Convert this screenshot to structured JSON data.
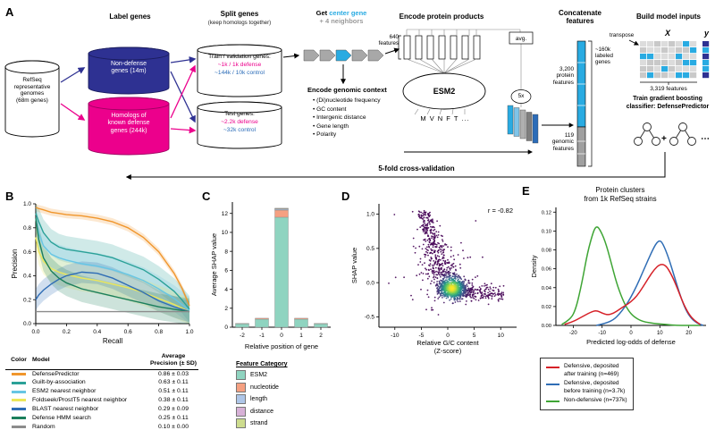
{
  "colors": {
    "navy": "#2e3192",
    "magenta": "#ec008c",
    "gene_blue": "#29abe2",
    "control_blue": "#2b6cb8",
    "neighbor_gray": "#9a9a9a",
    "gene_gray": "#a8a8a8"
  },
  "panels": {
    "a": "A",
    "b": "B",
    "c": "C",
    "d": "D",
    "e": "E"
  },
  "panelA": {
    "label_genes": "Label genes",
    "split_genes": "Split genes",
    "split_sub": "(keep homologs together)",
    "get": "Get ",
    "center_gene": "center gene",
    "neighbors": "+ 4 neighbors",
    "encode_protein": "Encode protein products",
    "concatenate": "Concatenate\nfeatures",
    "build": "Build model inputs",
    "refseq": "RefSeq\nrepresentative\ngenomes\n(68m genes)",
    "nondefense": "Non-defense\ngenes (14m)",
    "homologs": "Homologs of\nknown defense\ngenes (244k)",
    "train_title": "Train / validation genes:",
    "train_defense": "~1k / 1k defense",
    "train_control": "~144k / 10k control",
    "test_title": "Test genes:",
    "test_defense": "~2.2k defense",
    "test_control": "~32k control",
    "features640": "640\nfeatures",
    "avg": "avg.",
    "esm2": "ESM2",
    "aa": "M  V  N  F  T ...",
    "x5": "5x",
    "encode_context": "Encode genomic context",
    "context_items": [
      "(Di)nucleotide frequency",
      "GC content",
      "Intergenic distance",
      "Gene length",
      "Polarity"
    ],
    "protein_features": "3,200\nprotein\nfeatures",
    "genomic_features": "119\ngenomic\nfeatures",
    "labeled": "~160k\nlabeled\ngenes",
    "transpose": "transpose",
    "matrix_x": "X",
    "matrix_y": "y",
    "features3319": "3,319 features",
    "classifier": "Train gradient boosting\nclassifier: DefensePredictor",
    "plus": "+",
    "dots": "⋯",
    "cv": "5-fold cross-validation"
  },
  "chart_data": [
    {
      "id": "pr",
      "panel": "B",
      "type": "line",
      "xlabel": "Recall",
      "ylabel": "Precision",
      "xlim": [
        0,
        1
      ],
      "ylim": [
        0,
        1
      ],
      "xticks": [
        0.0,
        0.2,
        0.4,
        0.6,
        0.8,
        1.0
      ],
      "yticks": [
        0.0,
        0.2,
        0.4,
        0.6,
        0.8,
        1.0
      ],
      "x": [
        0,
        0.02,
        0.05,
        0.1,
        0.15,
        0.2,
        0.3,
        0.4,
        0.5,
        0.6,
        0.7,
        0.8,
        0.9,
        0.95,
        1.0
      ],
      "series": [
        {
          "name": "DefensePredictor",
          "color": "#f0962c",
          "sd": 0.03,
          "y": [
            0.97,
            0.96,
            0.95,
            0.93,
            0.92,
            0.91,
            0.9,
            0.88,
            0.85,
            0.8,
            0.72,
            0.6,
            0.42,
            0.3,
            0.15
          ]
        },
        {
          "name": "Guilt-by-association",
          "color": "#2ba198",
          "sd": 0.11,
          "y": [
            0.92,
            0.85,
            0.76,
            0.68,
            0.64,
            0.62,
            0.6,
            0.58,
            0.55,
            0.5,
            0.45,
            0.37,
            0.27,
            0.2,
            0.12
          ]
        },
        {
          "name": "ESM2 nearest neighbor",
          "color": "#67c6e4",
          "sd": 0.11,
          "y": [
            0.88,
            0.75,
            0.65,
            0.58,
            0.55,
            0.53,
            0.5,
            0.48,
            0.45,
            0.41,
            0.36,
            0.29,
            0.21,
            0.16,
            0.11
          ]
        },
        {
          "name": "Foldseek/ProstT5 nearest neighbor",
          "color": "#ece75a",
          "sd": 0.11,
          "y": [
            0.72,
            0.6,
            0.52,
            0.46,
            0.43,
            0.41,
            0.38,
            0.36,
            0.33,
            0.3,
            0.26,
            0.21,
            0.16,
            0.13,
            0.1
          ]
        },
        {
          "name": "BLAST nearest neighbor",
          "color": "#2f6db5",
          "sd": 0.09,
          "y": [
            0.2,
            0.24,
            0.28,
            0.33,
            0.37,
            0.4,
            0.43,
            0.42,
            0.38,
            0.32,
            0.26,
            0.19,
            0.14,
            0.12,
            0.1
          ]
        },
        {
          "name": "Defense HMM search",
          "color": "#1b7f5c",
          "sd": 0.11,
          "y": [
            0.88,
            0.7,
            0.55,
            0.44,
            0.38,
            0.34,
            0.29,
            0.26,
            0.23,
            0.2,
            0.17,
            0.14,
            0.12,
            0.11,
            0.1
          ]
        },
        {
          "name": "Random",
          "color": "#8c8c8c",
          "sd": 0.004,
          "y": [
            0.1,
            0.1,
            0.1,
            0.1,
            0.1,
            0.1,
            0.1,
            0.1,
            0.1,
            0.1,
            0.1,
            0.1,
            0.1,
            0.1,
            0.1
          ]
        }
      ],
      "table": {
        "col1": "Color",
        "col2": "Model",
        "col3": "Average\nPrecision (± SD)",
        "rows": [
          {
            "color": "#f0962c",
            "model": "DefensePredictor",
            "ap": "0.86 ± 0.03"
          },
          {
            "color": "#2ba198",
            "model": "Guilt-by-association",
            "ap": "0.63 ± 0.11"
          },
          {
            "color": "#67c6e4",
            "model": "ESM2 nearest neighbor",
            "ap": "0.51 ± 0.11"
          },
          {
            "color": "#ece75a",
            "model": "Foldseek/ProstT5 nearest neighbor",
            "ap": "0.38 ± 0.11"
          },
          {
            "color": "#2f6db5",
            "model": "BLAST nearest neighbor",
            "ap": "0.29 ± 0.09"
          },
          {
            "color": "#1b7f5c",
            "model": "Defense HMM search",
            "ap": "0.25 ± 0.11"
          },
          {
            "color": "#8c8c8c",
            "model": "Random",
            "ap": "0.10 ± 0.00"
          }
        ]
      }
    },
    {
      "id": "shap_bar",
      "panel": "C",
      "type": "bar",
      "xlabel": "Relative position of gene",
      "ylabel": "Average SHAP value",
      "categories": [
        -2,
        -1,
        0,
        1,
        2
      ],
      "yticks": [
        0,
        2,
        4,
        6,
        8,
        10,
        12
      ],
      "ylim": [
        0,
        13.2
      ],
      "stacks": [
        {
          "name": "ESM2",
          "color": "#8fd4c0",
          "values": [
            0.35,
            0.85,
            11.6,
            0.85,
            0.35
          ]
        },
        {
          "name": "nucleotide",
          "color": "#f5a081",
          "values": [
            0.05,
            0.1,
            0.75,
            0.1,
            0.05
          ]
        },
        {
          "name": "length",
          "color": "#aec6e8",
          "values": [
            0,
            0,
            0.1,
            0,
            0
          ]
        },
        {
          "name": "distance",
          "color": "#d7b1d7",
          "values": [
            0,
            0,
            0.05,
            0,
            0
          ]
        },
        {
          "name": "strand",
          "color": "#cddc8e",
          "values": [
            0,
            0,
            0.05,
            0,
            0
          ]
        }
      ],
      "legend_title": "Feature Category"
    },
    {
      "id": "gc_scatter",
      "panel": "D",
      "type": "scatter",
      "xlabel": "Relative G/C content\n(Z-score)",
      "ylabel": "SHAP value",
      "annotation": "r = -0.82",
      "xlim": [
        -13,
        13
      ],
      "ylim": [
        -0.65,
        1.15
      ],
      "xticks": [
        -10,
        -5,
        0,
        5,
        10
      ],
      "yticks": [
        -0.5,
        0.0,
        0.5,
        1.0
      ],
      "n_points": 1430,
      "distribution": "viridis density scatter: dense yellow-green core near (0.5,-0.08); purple arm rising to upper-left reaching (-5,1.0); sparse purple tail extending right to x≈11 at y≈-0.15"
    },
    {
      "id": "density",
      "panel": "E",
      "type": "line",
      "title": "Protein clusters\nfrom 1k RefSeq strains",
      "xlabel": "Predicted log-odds of defense",
      "ylabel": "Density",
      "xlim": [
        -26,
        26
      ],
      "ylim": [
        0,
        0.125
      ],
      "xticks": [
        -20,
        -10,
        0,
        10,
        20
      ],
      "yticks": [
        0.0,
        0.02,
        0.04,
        0.06,
        0.08,
        0.1,
        0.12
      ],
      "series": [
        {
          "name": "Non-defensive (n=737k)",
          "color": "#3fa535",
          "points": [
            [
              -24,
              0.001
            ],
            [
              -21,
              0.006
            ],
            [
              -19,
              0.018
            ],
            [
              -17,
              0.045
            ],
            [
              -15,
              0.078
            ],
            [
              -13,
              0.1
            ],
            [
              -12,
              0.105
            ],
            [
              -11,
              0.103
            ],
            [
              -9,
              0.09
            ],
            [
              -7,
              0.068
            ],
            [
              -5,
              0.045
            ],
            [
              -3,
              0.028
            ],
            [
              -1,
              0.016
            ],
            [
              1,
              0.009
            ],
            [
              4,
              0.004
            ],
            [
              8,
              0.002
            ],
            [
              12,
              0.001
            ],
            [
              16,
              0
            ],
            [
              20,
              0
            ],
            [
              24,
              0
            ]
          ]
        },
        {
          "name": "Defensive, deposited before training (n=3.7k)",
          "color": "#2f6db5",
          "points": [
            [
              -12,
              0
            ],
            [
              -9,
              0.002
            ],
            [
              -6,
              0.006
            ],
            [
              -4,
              0.012
            ],
            [
              -2,
              0.02
            ],
            [
              0,
              0.03
            ],
            [
              2,
              0.042
            ],
            [
              4,
              0.056
            ],
            [
              6,
              0.07
            ],
            [
              8,
              0.083
            ],
            [
              9,
              0.088
            ],
            [
              10,
              0.09
            ],
            [
              11,
              0.087
            ],
            [
              13,
              0.072
            ],
            [
              15,
              0.052
            ],
            [
              17,
              0.032
            ],
            [
              19,
              0.016
            ],
            [
              21,
              0.007
            ],
            [
              23,
              0.002
            ],
            [
              25,
              0
            ]
          ]
        },
        {
          "name": "Defensive, deposited after training (n=469)",
          "color": "#d62128",
          "points": [
            [
              -23,
              0.001
            ],
            [
              -20,
              0.004
            ],
            [
              -17,
              0.009
            ],
            [
              -14,
              0.014
            ],
            [
              -12,
              0.016
            ],
            [
              -10,
              0.013
            ],
            [
              -8,
              0.011
            ],
            [
              -6,
              0.013
            ],
            [
              -4,
              0.017
            ],
            [
              -2,
              0.021
            ],
            [
              0,
              0.025
            ],
            [
              2,
              0.031
            ],
            [
              4,
              0.04
            ],
            [
              6,
              0.05
            ],
            [
              8,
              0.059
            ],
            [
              10,
              0.065
            ],
            [
              12,
              0.064
            ],
            [
              14,
              0.054
            ],
            [
              16,
              0.04
            ],
            [
              18,
              0.024
            ],
            [
              20,
              0.012
            ],
            [
              22,
              0.005
            ],
            [
              24,
              0.001
            ]
          ]
        }
      ],
      "legend": [
        {
          "color": "#d62128",
          "label": "Defensive, deposited\nafter training (n=469)"
        },
        {
          "color": "#2f6db5",
          "label": "Defensive, deposited\nbefore training (n=3.7k)"
        },
        {
          "color": "#3fa535",
          "label": "Non-defensive (n=737k)"
        }
      ]
    }
  ]
}
